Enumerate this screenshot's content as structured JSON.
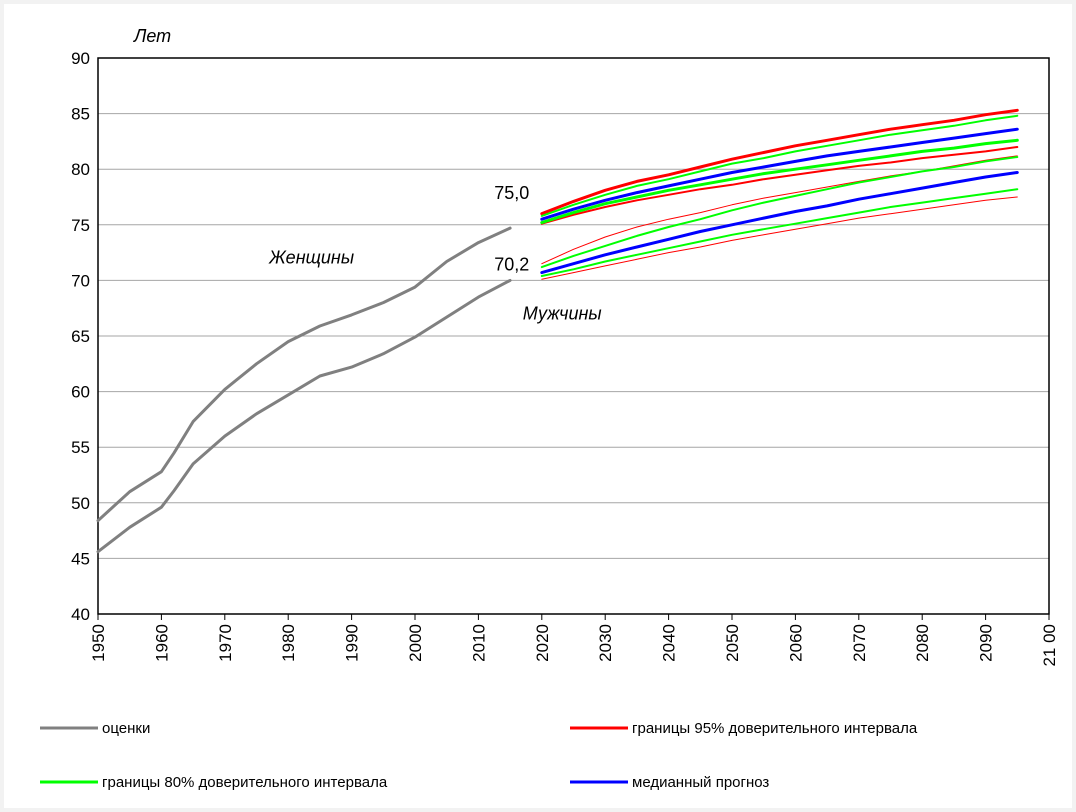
{
  "chart_data": {
    "type": "line",
    "ylabel": "Лет",
    "ylim": [
      40,
      90
    ],
    "yticks": [
      40,
      45,
      50,
      55,
      60,
      65,
      70,
      75,
      80,
      85,
      90
    ],
    "xlim": [
      1950,
      2100
    ],
    "xticks": [
      1950,
      1960,
      1970,
      1980,
      1990,
      2000,
      2010,
      2020,
      2030,
      2040,
      2050,
      2060,
      2070,
      2080,
      2090,
      2100
    ],
    "xtick_labels": [
      "1950",
      "1960",
      "1970",
      "1980",
      "1990",
      "2000",
      "2010",
      "2020",
      "2030",
      "2040",
      "2050",
      "2060",
      "2070",
      "2080",
      "2090",
      "21 00"
    ],
    "grid": "horizontal",
    "annotations": [
      {
        "text": "Женщины",
        "x": 1977,
        "y": 71.5
      },
      {
        "text": "Мужчины",
        "x": 2017,
        "y": 66.5
      },
      {
        "text": "75,0",
        "x": 2012.5,
        "y": 77.3
      },
      {
        "text": "70,2",
        "x": 2012.5,
        "y": 70.9
      }
    ],
    "legend": [
      {
        "key": "estimates",
        "label": "оценки",
        "color": "#808080"
      },
      {
        "key": "ci95",
        "label": "границы  95% доверительного интервала",
        "color": "#ff0000"
      },
      {
        "key": "ci80",
        "label": "границы  80% доверительного интервала",
        "color": "#00ff00"
      },
      {
        "key": "median",
        "label": "медианный  прогноз",
        "color": "#0000ff"
      }
    ],
    "series": [
      {
        "group": "estimates",
        "color": "#808080",
        "width": 3,
        "x": [
          1950,
          1955,
          1960,
          1962,
          1965,
          1970,
          1975,
          1980,
          1985,
          1990,
          1995,
          2000,
          2005,
          2010,
          2015
        ],
        "y": [
          48.4,
          51.0,
          52.8,
          54.5,
          57.3,
          60.2,
          62.5,
          64.5,
          65.9,
          66.9,
          68.0,
          69.4,
          71.7,
          73.4,
          74.7
        ]
      },
      {
        "group": "estimates",
        "color": "#808080",
        "width": 3,
        "x": [
          1950,
          1955,
          1960,
          1962,
          1965,
          1970,
          1975,
          1980,
          1985,
          1990,
          1995,
          2000,
          2005,
          2010,
          2015
        ],
        "y": [
          45.6,
          47.8,
          49.6,
          51.1,
          53.5,
          56.0,
          58.0,
          59.7,
          61.4,
          62.2,
          63.4,
          64.9,
          66.7,
          68.5,
          70.0
        ]
      },
      {
        "group": "ci95",
        "color": "#ff0000",
        "width": 3,
        "x": [
          2020,
          2025,
          2030,
          2035,
          2040,
          2045,
          2050,
          2055,
          2060,
          2065,
          2070,
          2075,
          2080,
          2085,
          2090,
          2095
        ],
        "y": [
          76.0,
          77.1,
          78.1,
          78.9,
          79.5,
          80.2,
          80.9,
          81.5,
          82.1,
          82.6,
          83.1,
          83.6,
          84.0,
          84.4,
          84.9,
          85.3
        ]
      },
      {
        "group": "ci95",
        "color": "#ff0000",
        "width": 2,
        "x": [
          2020,
          2025,
          2030,
          2035,
          2040,
          2045,
          2050,
          2055,
          2060,
          2065,
          2070,
          2075,
          2080,
          2085,
          2090,
          2095
        ],
        "y": [
          75.1,
          75.9,
          76.6,
          77.2,
          77.7,
          78.2,
          78.6,
          79.1,
          79.5,
          79.9,
          80.3,
          80.6,
          81.0,
          81.3,
          81.6,
          82.0
        ]
      },
      {
        "group": "ci80",
        "color": "#00ff00",
        "width": 2,
        "x": [
          2020,
          2025,
          2030,
          2035,
          2040,
          2045,
          2050,
          2055,
          2060,
          2065,
          2070,
          2075,
          2080,
          2085,
          2090,
          2095
        ],
        "y": [
          75.8,
          76.8,
          77.7,
          78.5,
          79.1,
          79.8,
          80.5,
          81.0,
          81.6,
          82.1,
          82.6,
          83.1,
          83.5,
          83.9,
          84.4,
          84.8
        ]
      },
      {
        "group": "ci80",
        "color": "#00ff00",
        "width": 3,
        "x": [
          2020,
          2025,
          2030,
          2035,
          2040,
          2045,
          2050,
          2055,
          2060,
          2065,
          2070,
          2075,
          2080,
          2085,
          2090,
          2095
        ],
        "y": [
          75.2,
          76.1,
          76.9,
          77.5,
          78.1,
          78.6,
          79.1,
          79.6,
          80.0,
          80.4,
          80.8,
          81.2,
          81.6,
          81.9,
          82.3,
          82.6
        ]
      },
      {
        "group": "median",
        "color": "#0000ff",
        "width": 3,
        "x": [
          2020,
          2025,
          2030,
          2035,
          2040,
          2045,
          2050,
          2055,
          2060,
          2065,
          2070,
          2075,
          2080,
          2085,
          2090,
          2095
        ],
        "y": [
          75.5,
          76.4,
          77.2,
          77.9,
          78.5,
          79.1,
          79.7,
          80.2,
          80.7,
          81.2,
          81.6,
          82.0,
          82.4,
          82.8,
          83.2,
          83.6
        ]
      },
      {
        "group": "ci95",
        "color": "#ff0000",
        "width": 1,
        "x": [
          2020,
          2025,
          2030,
          2035,
          2040,
          2045,
          2050,
          2055,
          2060,
          2065,
          2070,
          2075,
          2080,
          2085,
          2090,
          2095
        ],
        "y": [
          71.5,
          72.8,
          73.9,
          74.8,
          75.5,
          76.1,
          76.8,
          77.4,
          77.9,
          78.4,
          78.9,
          79.4,
          79.8,
          80.3,
          80.8,
          81.2
        ]
      },
      {
        "group": "ci80",
        "color": "#00ff00",
        "width": 2,
        "x": [
          2020,
          2025,
          2030,
          2035,
          2040,
          2045,
          2050,
          2055,
          2060,
          2065,
          2070,
          2075,
          2080,
          2085,
          2090,
          2095
        ],
        "y": [
          71.2,
          72.2,
          73.1,
          74.0,
          74.8,
          75.5,
          76.3,
          77.0,
          77.6,
          78.2,
          78.8,
          79.3,
          79.8,
          80.2,
          80.7,
          81.1
        ]
      },
      {
        "group": "median",
        "color": "#0000ff",
        "width": 3,
        "x": [
          2020,
          2025,
          2030,
          2035,
          2040,
          2045,
          2050,
          2055,
          2060,
          2065,
          2070,
          2075,
          2080,
          2085,
          2090,
          2095
        ],
        "y": [
          70.7,
          71.5,
          72.3,
          73.0,
          73.7,
          74.4,
          75.0,
          75.6,
          76.2,
          76.7,
          77.3,
          77.8,
          78.3,
          78.8,
          79.3,
          79.7
        ]
      },
      {
        "group": "ci80",
        "color": "#00ff00",
        "width": 2,
        "x": [
          2020,
          2025,
          2030,
          2035,
          2040,
          2045,
          2050,
          2055,
          2060,
          2065,
          2070,
          2075,
          2080,
          2085,
          2090,
          2095
        ],
        "y": [
          70.4,
          71.0,
          71.7,
          72.3,
          72.9,
          73.5,
          74.1,
          74.6,
          75.1,
          75.6,
          76.1,
          76.6,
          77.0,
          77.4,
          77.8,
          78.2
        ]
      },
      {
        "group": "ci95",
        "color": "#ff0000",
        "width": 1,
        "x": [
          2020,
          2025,
          2030,
          2035,
          2040,
          2045,
          2050,
          2055,
          2060,
          2065,
          2070,
          2075,
          2080,
          2085,
          2090,
          2095
        ],
        "y": [
          70.1,
          70.7,
          71.3,
          71.9,
          72.5,
          73.0,
          73.6,
          74.1,
          74.6,
          75.1,
          75.6,
          76.0,
          76.4,
          76.8,
          77.2,
          77.5
        ]
      }
    ]
  }
}
